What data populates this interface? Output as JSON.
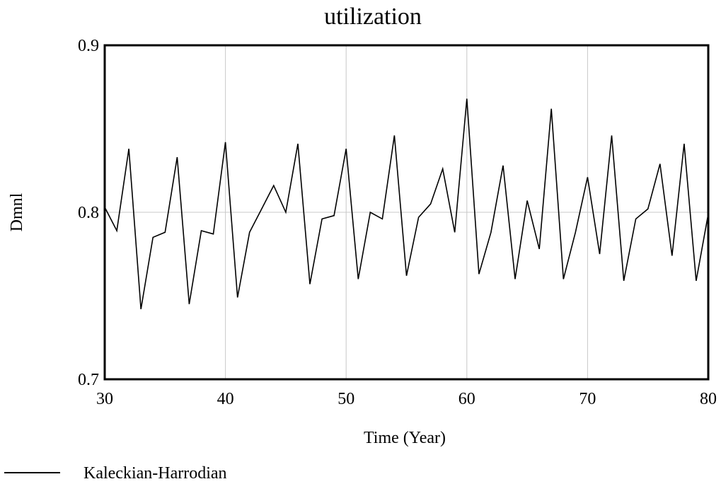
{
  "chart_data": {
    "type": "line",
    "title": "utilization",
    "xlabel": "Time (Year)",
    "ylabel": "Dmnl",
    "xlim": [
      30,
      80
    ],
    "ylim": [
      0.7,
      0.9
    ],
    "x_ticks": [
      "30",
      "40",
      "50",
      "60",
      "70",
      "80"
    ],
    "y_ticks": [
      "0.9",
      "0.8",
      "0.7"
    ],
    "grid": true,
    "legend_position": "bottom-left",
    "series": [
      {
        "name": "Kaleckian-Harrodian",
        "color": "#000000",
        "x": [
          30,
          31,
          32,
          33,
          34,
          35,
          36,
          37,
          38,
          39,
          40,
          41,
          42,
          43,
          44,
          45,
          46,
          47,
          48,
          49,
          50,
          51,
          52,
          53,
          54,
          55,
          56,
          57,
          58,
          59,
          60,
          61,
          62,
          63,
          64,
          65,
          66,
          67,
          68,
          69,
          70,
          71,
          72,
          73,
          74,
          75,
          76,
          77,
          78,
          79,
          80
        ],
        "values": [
          0.803,
          0.789,
          0.838,
          0.742,
          0.785,
          0.788,
          0.833,
          0.745,
          0.789,
          0.787,
          0.842,
          0.749,
          0.788,
          0.802,
          0.816,
          0.8,
          0.841,
          0.757,
          0.796,
          0.798,
          0.838,
          0.76,
          0.8,
          0.796,
          0.846,
          0.762,
          0.797,
          0.805,
          0.826,
          0.788,
          0.868,
          0.763,
          0.788,
          0.828,
          0.76,
          0.807,
          0.778,
          0.862,
          0.76,
          0.788,
          0.821,
          0.775,
          0.846,
          0.759,
          0.796,
          0.802,
          0.829,
          0.774,
          0.841,
          0.759,
          0.799
        ]
      }
    ]
  }
}
